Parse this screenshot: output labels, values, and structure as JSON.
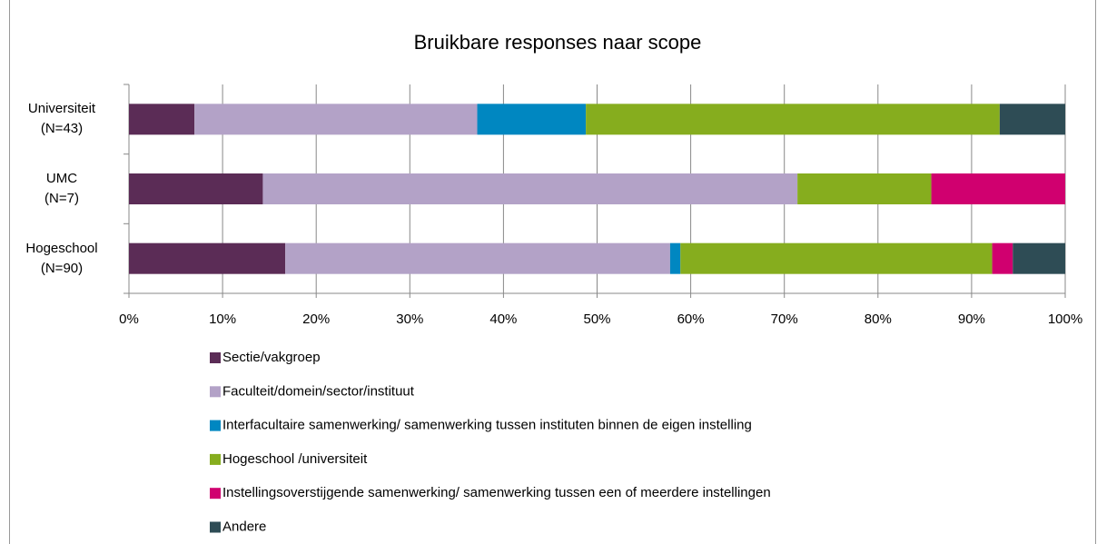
{
  "chart_data": {
    "type": "stacked_barh",
    "title": "Bruikbare responses naar scope",
    "categories": [
      "Universiteit\n(N=43)",
      "UMC\n(N=7)",
      "Hogeschool\n(N=90)"
    ],
    "series": [
      {
        "name": "Sectie/vakgroep",
        "color": "#5b2c56",
        "values": [
          7.0,
          14.3,
          16.7
        ]
      },
      {
        "name": "Faculteit/domein/sector/instituut",
        "color": "#b3a2c7",
        "values": [
          30.2,
          57.1,
          41.1
        ]
      },
      {
        "name": "Interfacultaire samenwerking/ samenwerking tussen instituten binnen de eigen instelling",
        "color": "#0087c1",
        "values": [
          11.6,
          0,
          1.1
        ]
      },
      {
        "name": "Hogeschool /universiteit",
        "color": "#86ad1e",
        "values": [
          44.2,
          14.3,
          33.3
        ]
      },
      {
        "name": "Instellingsoverstijgende samenwerking/ samenwerking tussen een of meerdere instellingen",
        "color": "#d0006f",
        "values": [
          0,
          14.3,
          2.2
        ]
      },
      {
        "name": "Andere",
        "color": "#2e4c55",
        "values": [
          7.0,
          0,
          5.6
        ]
      }
    ],
    "xlim": [
      0,
      100
    ],
    "xticks": [
      {
        "value": 0,
        "label": "0%"
      },
      {
        "value": 10,
        "label": "10%"
      },
      {
        "value": 20,
        "label": "20%"
      },
      {
        "value": 30,
        "label": "30%"
      },
      {
        "value": 40,
        "label": "40%"
      },
      {
        "value": 50,
        "label": "50%"
      },
      {
        "value": 60,
        "label": "60%"
      },
      {
        "value": 70,
        "label": "70%"
      },
      {
        "value": 80,
        "label": "80%"
      },
      {
        "value": 90,
        "label": "90%"
      },
      {
        "value": 100,
        "label": "100%"
      }
    ],
    "grid": true
  }
}
